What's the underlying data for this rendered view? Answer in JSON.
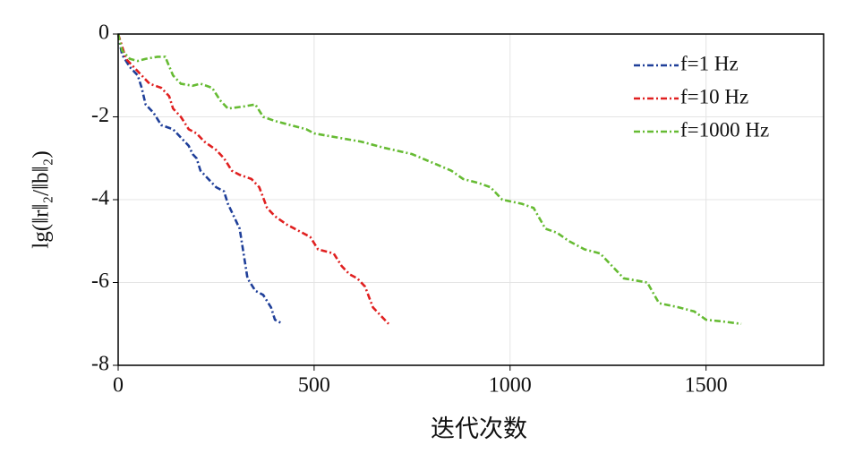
{
  "chart_data": {
    "type": "line",
    "xlabel": "迭代次数",
    "ylabel": "lg(‖r‖₂/‖b‖₂)",
    "xlim": [
      0,
      1800
    ],
    "ylim": [
      -8,
      0
    ],
    "xticks": [
      0,
      500,
      1000,
      1500
    ],
    "yticks": [
      0,
      -2,
      -4,
      -6,
      -8
    ],
    "grid": true,
    "legend": "upper right",
    "series": [
      {
        "name": "f=1 Hz",
        "color": "#1f3f99",
        "x": [
          0,
          10,
          30,
          50,
          60,
          70,
          90,
          110,
          140,
          160,
          180,
          190,
          200,
          210,
          230,
          250,
          270,
          280,
          300,
          310,
          320,
          330,
          350,
          370,
          390,
          400,
          420
        ],
        "values": [
          0,
          -0.5,
          -0.8,
          -1.0,
          -1.3,
          -1.7,
          -1.9,
          -2.2,
          -2.3,
          -2.5,
          -2.7,
          -2.9,
          -3.0,
          -3.3,
          -3.5,
          -3.7,
          -3.8,
          -4.1,
          -4.5,
          -4.7,
          -5.3,
          -5.9,
          -6.2,
          -6.3,
          -6.6,
          -6.9,
          -7.0
        ]
      },
      {
        "name": "f=10 Hz",
        "color": "#e02020",
        "x": [
          0,
          20,
          50,
          80,
          110,
          130,
          140,
          160,
          180,
          200,
          220,
          250,
          270,
          290,
          310,
          340,
          360,
          380,
          400,
          430,
          470,
          490,
          510,
          550,
          570,
          590,
          610,
          630,
          650,
          670,
          690
        ],
        "values": [
          0,
          -0.6,
          -0.9,
          -1.2,
          -1.3,
          -1.5,
          -1.8,
          -2.0,
          -2.3,
          -2.4,
          -2.6,
          -2.8,
          -3.0,
          -3.3,
          -3.4,
          -3.5,
          -3.7,
          -4.2,
          -4.4,
          -4.6,
          -4.8,
          -4.9,
          -5.2,
          -5.3,
          -5.6,
          -5.8,
          -5.9,
          -6.1,
          -6.6,
          -6.8,
          -7.0
        ]
      },
      {
        "name": "f=1000 Hz",
        "color": "#66bb33",
        "x": [
          0,
          10,
          30,
          50,
          70,
          100,
          120,
          140,
          160,
          190,
          210,
          240,
          260,
          280,
          320,
          350,
          370,
          400,
          440,
          480,
          500,
          560,
          620,
          680,
          750,
          800,
          850,
          880,
          920,
          950,
          980,
          1030,
          1060,
          1090,
          1120,
          1150,
          1190,
          1230,
          1260,
          1290,
          1350,
          1380,
          1430,
          1470,
          1500,
          1550,
          1590
        ],
        "values": [
          0,
          -0.4,
          -0.6,
          -0.65,
          -0.6,
          -0.55,
          -0.55,
          -1.0,
          -1.2,
          -1.25,
          -1.2,
          -1.3,
          -1.6,
          -1.8,
          -1.75,
          -1.7,
          -2.0,
          -2.1,
          -2.2,
          -2.3,
          -2.4,
          -2.5,
          -2.6,
          -2.75,
          -2.9,
          -3.1,
          -3.3,
          -3.5,
          -3.6,
          -3.7,
          -4.0,
          -4.1,
          -4.2,
          -4.7,
          -4.8,
          -5.0,
          -5.2,
          -5.3,
          -5.6,
          -5.9,
          -6.0,
          -6.5,
          -6.6,
          -6.7,
          -6.9,
          -6.95,
          -7.0
        ]
      }
    ]
  }
}
